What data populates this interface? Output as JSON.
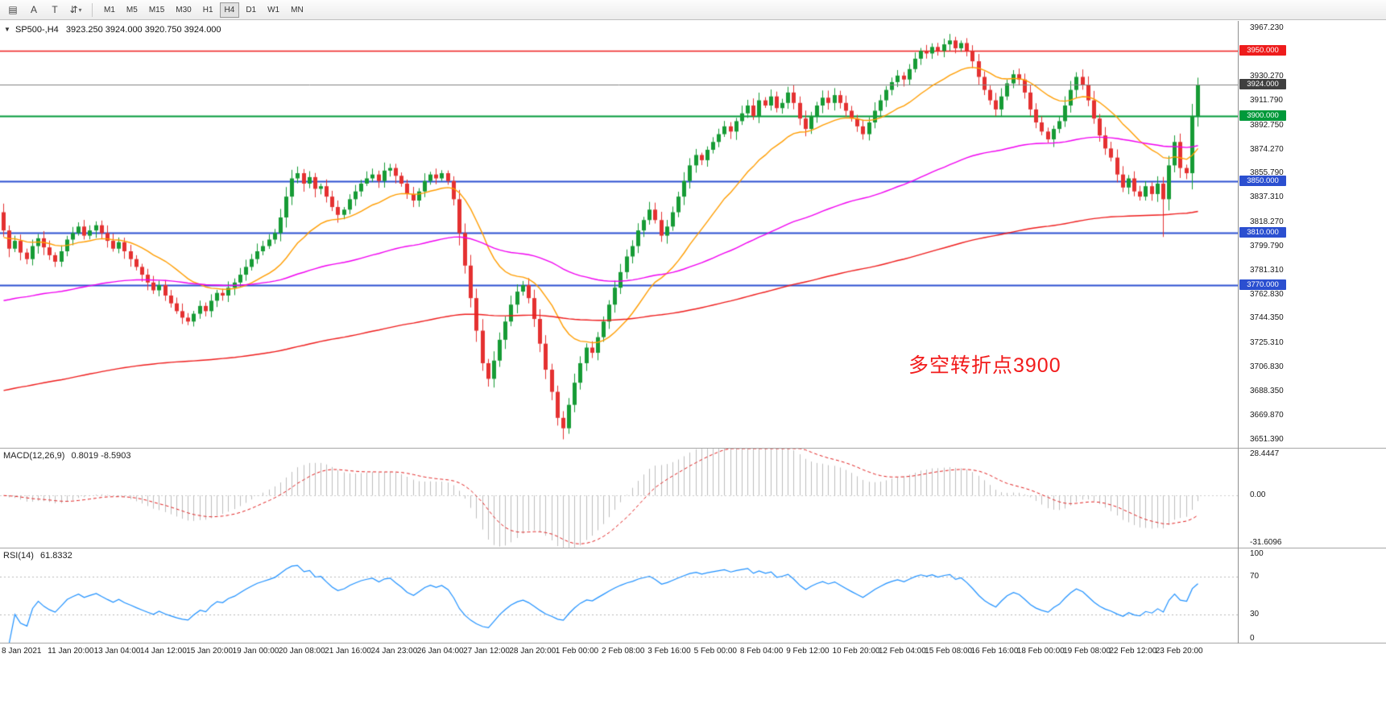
{
  "toolbar": {
    "icons": [
      {
        "name": "chart-window-icon",
        "glyph": "▤"
      },
      {
        "name": "cursor-tool-icon",
        "glyph": "A"
      },
      {
        "name": "text-tool-icon",
        "glyph": "T"
      },
      {
        "name": "chart-type-icon",
        "glyph": "⇵"
      }
    ],
    "dropdown_caret": "▾",
    "timeframes": [
      "M1",
      "M5",
      "M15",
      "M30",
      "H1",
      "H4",
      "D1",
      "W1",
      "MN"
    ],
    "active_timeframe": "H4"
  },
  "chart_header": {
    "dropdown_glyph": "▼",
    "symbol_timeframe": "SP500-,H4",
    "ohlc_text": "3923.250 3924.000 3920.750 3924.000"
  },
  "annotation": {
    "text": "多空转折点3900",
    "color": "#f21b1b"
  },
  "chart_data": {
    "type": "candlestick",
    "symbol": "SP500-",
    "timeframe": "H4",
    "price_range": [
      3645,
      3973
    ],
    "first_open": 3826,
    "up_color": "#169b35",
    "down_color": "#e43131",
    "closes": [
      3812,
      3798,
      3804,
      3795,
      3790,
      3800,
      3806,
      3799,
      3793,
      3788,
      3796,
      3805,
      3810,
      3815,
      3808,
      3812,
      3816,
      3810,
      3804,
      3798,
      3803,
      3796,
      3790,
      3784,
      3778,
      3772,
      3766,
      3770,
      3762,
      3756,
      3750,
      3745,
      3742,
      3748,
      3754,
      3750,
      3758,
      3764,
      3762,
      3768,
      3772,
      3778,
      3784,
      3790,
      3796,
      3800,
      3805,
      3810,
      3822,
      3838,
      3852,
      3856,
      3848,
      3853,
      3844,
      3846,
      3838,
      3830,
      3824,
      3828,
      3836,
      3842,
      3848,
      3852,
      3855,
      3850,
      3858,
      3860,
      3854,
      3848,
      3840,
      3835,
      3842,
      3850,
      3855,
      3852,
      3856,
      3850,
      3836,
      3810,
      3785,
      3760,
      3735,
      3710,
      3698,
      3712,
      3728,
      3742,
      3755,
      3765,
      3770,
      3760,
      3744,
      3725,
      3705,
      3688,
      3668,
      3660,
      3678,
      3695,
      3710,
      3722,
      3718,
      3730,
      3742,
      3755,
      3768,
      3780,
      3792,
      3800,
      3812,
      3820,
      3828,
      3820,
      3808,
      3815,
      3826,
      3838,
      3850,
      3862,
      3870,
      3866,
      3874,
      3880,
      3886,
      3892,
      3888,
      3896,
      3902,
      3908,
      3900,
      3912,
      3908,
      3915,
      3906,
      3910,
      3918,
      3910,
      3898,
      3890,
      3900,
      3908,
      3914,
      3910,
      3916,
      3910,
      3904,
      3898,
      3892,
      3886,
      3895,
      3904,
      3912,
      3920,
      3926,
      3931,
      3928,
      3936,
      3944,
      3950,
      3948,
      3953,
      3950,
      3955,
      3958,
      3952,
      3956,
      3950,
      3942,
      3930,
      3920,
      3912,
      3905,
      3915,
      3925,
      3932,
      3928,
      3918,
      3905,
      3895,
      3888,
      3882,
      3890,
      3896,
      3908,
      3920,
      3930,
      3924,
      3912,
      3898,
      3885,
      3875,
      3868,
      3855,
      3845,
      3852,
      3842,
      3838,
      3846,
      3840,
      3848,
      3836,
      3862,
      3880,
      3860,
      3856,
      3900,
      3924
    ],
    "wick_overrides": {
      "84": {
        "low": 3692
      },
      "97": {
        "low": 3651.5
      },
      "164": {
        "high": 3963
      },
      "201": {
        "low": 3807
      }
    },
    "current_price": {
      "value": 3924.0,
      "label": "3924.000",
      "line_color": "#808080",
      "badge_bg": "#3f3f3f"
    },
    "h_lines": [
      {
        "label": "3950.000",
        "value": 3950,
        "color": "#ee1c1c",
        "width": 1.6
      },
      {
        "label": "3900.000",
        "value": 3900,
        "color": "#00993a",
        "width": 2
      },
      {
        "label": "3850.000",
        "value": 3850,
        "color": "#2b4fd0",
        "width": 1.8
      },
      {
        "label": "3810.000",
        "value": 3810,
        "color": "#2b4fd0",
        "width": 1.8
      },
      {
        "label": "3770.000",
        "value": 3770,
        "color": "#2b4fd0",
        "width": 1.8
      }
    ],
    "y_ticks": [
      "3967.230",
      "3930.270",
      "3911.790",
      "3892.750",
      "3874.270",
      "3855.790",
      "3837.310",
      "3818.270",
      "3799.790",
      "3781.310",
      "3762.830",
      "3744.350",
      "3725.310",
      "3706.830",
      "3688.350",
      "3669.870",
      "3651.390"
    ],
    "x_labels": [
      "8 Jan 2021",
      "11 Jan 20:00",
      "13 Jan 04:00",
      "14 Jan 12:00",
      "15 Jan 20:00",
      "19 Jan 00:00",
      "20 Jan 08:00",
      "21 Jan 16:00",
      "24 Jan 23:00",
      "26 Jan 04:00",
      "27 Jan 12:00",
      "28 Jan 20:00",
      "1 Feb 00:00",
      "2 Feb 08:00",
      "3 Feb 16:00",
      "5 Feb 00:00",
      "8 Feb 04:00",
      "9 Feb 12:00",
      "10 Feb 20:00",
      "12 Feb 04:00",
      "15 Feb 08:00",
      "16 Feb 16:00",
      "18 Feb 00:00",
      "19 Feb 08:00",
      "22 Feb 12:00",
      "23 Feb 20:00"
    ],
    "label_every": 8,
    "moving_averages": [
      {
        "name": "ma-fast",
        "color": "#ff9d00",
        "alpha": 0.095,
        "seed": 3806
      },
      {
        "name": "ma-medium",
        "color": "#f000f0",
        "alpha": 0.02,
        "seed": 3757
      },
      {
        "name": "ma-slow",
        "color": "#ee1c1c",
        "alpha": 0.008,
        "seed": 3688
      }
    ],
    "macd": {
      "label": "MACD(12,26,9)",
      "values": "0.8019 -8.5903",
      "fast": 12,
      "slow": 26,
      "signal": 9,
      "range": [
        -31.6096,
        28.4447
      ],
      "y_ticks": [
        "28.4447",
        "0.00",
        "-31.6096"
      ],
      "histogram_color": "#bdbdbd",
      "signal_color": "#e02020"
    },
    "rsi": {
      "label": "RSI(14)",
      "values": "61.8332",
      "period": 14,
      "range": [
        0,
        100
      ],
      "levels": [
        70,
        30
      ],
      "y_ticks": [
        "100",
        "70",
        "30",
        "0"
      ],
      "line_color": "#1e90ff",
      "level_color": "#b8b8b8"
    }
  }
}
